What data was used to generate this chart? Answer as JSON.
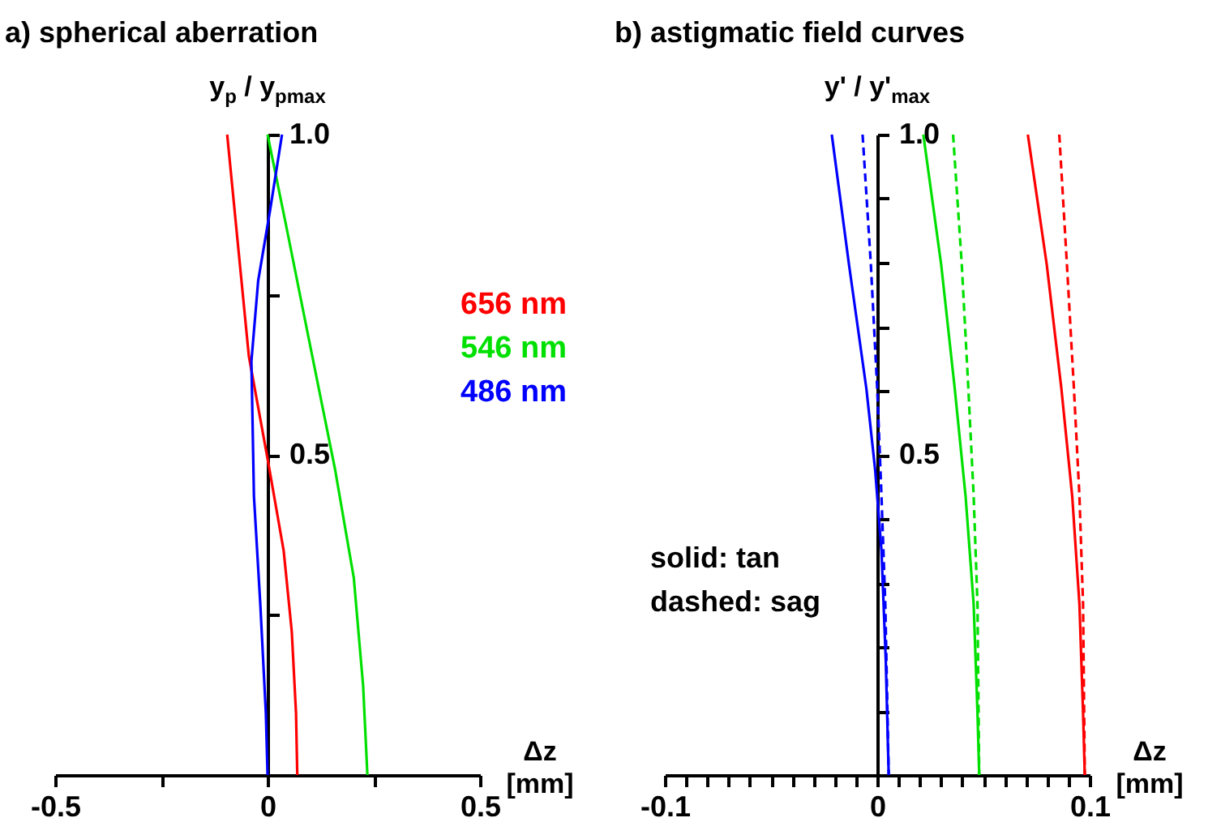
{
  "chart_data": [
    {
      "type": "line",
      "title": "a) spherical aberration",
      "xlabel": "Δz [mm]",
      "ylabel": "y$_{p}$ / y$_{pmax}$",
      "legend": "right",
      "xlim": [
        -0.5,
        0.5
      ],
      "xticks": [
        -0.5,
        {
          "value": -0.25,
          "label": null
        },
        0,
        {
          "value": 0.25,
          "label": null
        },
        0.5
      ],
      "ylim": [
        0,
        1
      ],
      "yticks": [
        {
          "value": 0.25,
          "label": null
        },
        0.5,
        {
          "value": 0.75,
          "label": null
        },
        {
          "value": 1,
          "label": "1.0"
        }
      ],
      "series": [
        {
          "name": "656 nm",
          "color": "#ff0000",
          "x": [
            -0.095,
            -0.044,
            0,
            0.038,
            0.057,
            0.067,
            0.07
          ],
          "values": [
            1,
            0.654,
            0.494,
            0.35,
            0.224,
            0.097,
            0
          ]
        },
        {
          "name": "546 nm",
          "color": "#00e000",
          "x": [
            0,
            0.044,
            0.095,
            0.159,
            0.203,
            0.225,
            0.235
          ],
          "values": [
            1,
            0.857,
            0.688,
            0.477,
            0.308,
            0.139,
            0
          ]
        },
        {
          "name": "486 nm",
          "color": "#0000ff",
          "x": [
            0.034,
            0.006,
            -0.022,
            -0.038,
            -0.032,
            -0.017,
            -0.004,
            0
          ],
          "values": [
            1,
            0.882,
            0.772,
            0.646,
            0.435,
            0.266,
            0.097,
            0
          ]
        }
      ]
    },
    {
      "type": "line",
      "title": "b) astigmatic field curves",
      "xlabel": "Δz [mm]",
      "ylabel": "y' / y'$_{max}$",
      "annotations": [
        "solid: tan",
        "dashed: sag"
      ],
      "xlim": [
        -0.1,
        0.1
      ],
      "xticks": [
        -0.1,
        {
          "value": -0.09,
          "label": null
        },
        {
          "value": -0.08,
          "label": null
        },
        {
          "value": -0.07,
          "label": null
        },
        {
          "value": -0.06,
          "label": null
        },
        {
          "value": -0.05,
          "label": null
        },
        {
          "value": -0.04,
          "label": null
        },
        {
          "value": -0.03,
          "label": null
        },
        {
          "value": -0.02,
          "label": null
        },
        {
          "value": -0.01,
          "label": null
        },
        0,
        {
          "value": 0.01,
          "label": null
        },
        {
          "value": 0.02,
          "label": null
        },
        {
          "value": 0.03,
          "label": null
        },
        {
          "value": 0.04,
          "label": null
        },
        {
          "value": 0.05,
          "label": null
        },
        {
          "value": 0.06,
          "label": null
        },
        {
          "value": 0.07,
          "label": null
        },
        {
          "value": 0.08,
          "label": null
        },
        {
          "value": 0.09,
          "label": null
        },
        0.1
      ],
      "ylim": [
        0,
        1
      ],
      "yticks": [
        {
          "value": 0.1,
          "label": null
        },
        {
          "value": 0.2,
          "label": null
        },
        {
          "value": 0.3,
          "label": null
        },
        {
          "value": 0.4,
          "label": null
        },
        0.5,
        {
          "value": 0.6,
          "label": null
        },
        {
          "value": 0.7,
          "label": null
        },
        {
          "value": 0.8,
          "label": null
        },
        {
          "value": 0.9,
          "label": null
        },
        {
          "value": 1,
          "label": "1.0"
        }
      ],
      "series": [
        {
          "color": "#0000ff",
          "line_style": "solid",
          "x": [
            -0.0214,
            -0.0133,
            -0.0051,
            -0.001,
            0.002,
            0.004,
            0.0054
          ],
          "values": [
            1,
            0.797,
            0.603,
            0.477,
            0.35,
            0.181,
            0
          ]
        },
        {
          "color": "#0000ff",
          "line_style": "dashed",
          "x": [
            -0.0069,
            -0.003,
            0,
            0.002,
            0.0038,
            0.0054
          ],
          "values": [
            1,
            0.797,
            0.603,
            0.435,
            0.266,
            0
          ]
        },
        {
          "color": "#00e000",
          "line_style": "solid",
          "x": [
            0.0217,
            0.0301,
            0.0365,
            0.0416,
            0.0454,
            0.0472,
            0.048
          ],
          "values": [
            1,
            0.797,
            0.603,
            0.435,
            0.266,
            0.097,
            0
          ]
        },
        {
          "color": "#00e000",
          "line_style": "dashed",
          "x": [
            0.0357,
            0.0398,
            0.0429,
            0.0454,
            0.0472,
            0.048
          ],
          "values": [
            1,
            0.797,
            0.603,
            0.435,
            0.266,
            0
          ]
        },
        {
          "color": "#ff0000",
          "line_style": "solid",
          "x": [
            0.0709,
            0.0798,
            0.0867,
            0.0918,
            0.0952,
            0.0969,
            0.0977
          ],
          "values": [
            1,
            0.797,
            0.603,
            0.435,
            0.266,
            0.097,
            0
          ]
        },
        {
          "color": "#ff0000",
          "line_style": "dashed",
          "x": [
            0.0857,
            0.0893,
            0.0926,
            0.0952,
            0.0969,
            0.0977
          ],
          "values": [
            1,
            0.797,
            0.603,
            0.435,
            0.266,
            0
          ]
        }
      ]
    }
  ]
}
